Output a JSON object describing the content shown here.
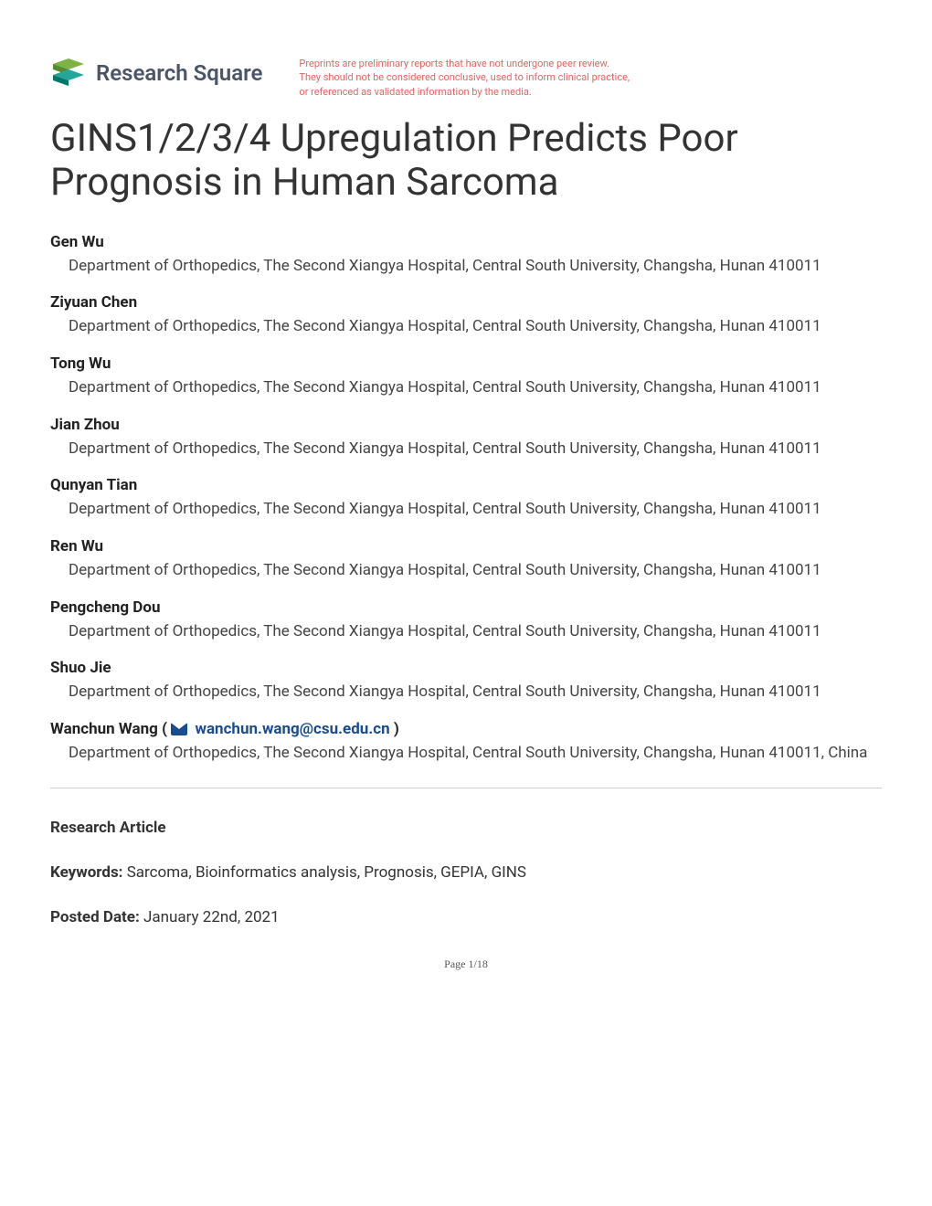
{
  "logo": {
    "text": "Research Square",
    "colors": {
      "green1": "#7cb342",
      "green2": "#558b2f",
      "teal1": "#26a69a",
      "teal2": "#00796b"
    }
  },
  "disclaimer": {
    "line1": "Preprints are preliminary reports that have not undergone peer review.",
    "line2": "They should not be considered conclusive, used to inform clinical practice,",
    "line3": "or referenced as validated information by the media."
  },
  "title": "GINS1/2/3/4 Upregulation Predicts Poor Prognosis in Human Sarcoma",
  "authors": [
    {
      "name": "Gen Wu",
      "affiliation": "Department of Orthopedics, The Second Xiangya Hospital, Central South University, Changsha, Hunan 410011"
    },
    {
      "name": "Ziyuan Chen",
      "affiliation": "Department of Orthopedics, The Second Xiangya Hospital, Central South University, Changsha, Hunan 410011"
    },
    {
      "name": "Tong Wu",
      "affiliation": "Department of Orthopedics, The Second Xiangya Hospital, Central South University, Changsha, Hunan 410011"
    },
    {
      "name": "Jian Zhou",
      "affiliation": "Department of Orthopedics, The Second Xiangya Hospital, Central South University, Changsha, Hunan 410011"
    },
    {
      "name": "Qunyan Tian",
      "affiliation": "Department of Orthopedics, The Second Xiangya Hospital, Central South University, Changsha, Hunan 410011"
    },
    {
      "name": "Ren Wu",
      "affiliation": "Department of Orthopedics, The Second Xiangya Hospital, Central South University, Changsha, Hunan 410011"
    },
    {
      "name": "Pengcheng Dou",
      "affiliation": "Department of Orthopedics, The Second Xiangya Hospital, Central South University, Changsha, Hunan 410011"
    },
    {
      "name": "Shuo Jie",
      "affiliation": "Department of Orthopedics, The Second Xiangya Hospital, Central South University, Changsha, Hunan 410011"
    }
  ],
  "corresponding_author": {
    "name": "Wanchun Wang",
    "email": "wanchun.wang@csu.edu.cn",
    "affiliation": "Department of Orthopedics, The Second Xiangya Hospital, Central South University, Changsha, Hunan 410011, China"
  },
  "meta": {
    "article_type": "Research Article",
    "keywords_label": "Keywords:",
    "keywords": "Sarcoma, Bioinformatics analysis, Prognosis, GEPIA, GINS",
    "posted_label": "Posted Date:",
    "posted_date": "January 22nd, 2021"
  },
  "page_footer": "Page 1/18",
  "colors": {
    "text_primary": "#333333",
    "text_heading": "#222222",
    "disclaimer": "#e36464",
    "link": "#1a4d8f",
    "divider": "#cccccc",
    "background": "#ffffff"
  }
}
